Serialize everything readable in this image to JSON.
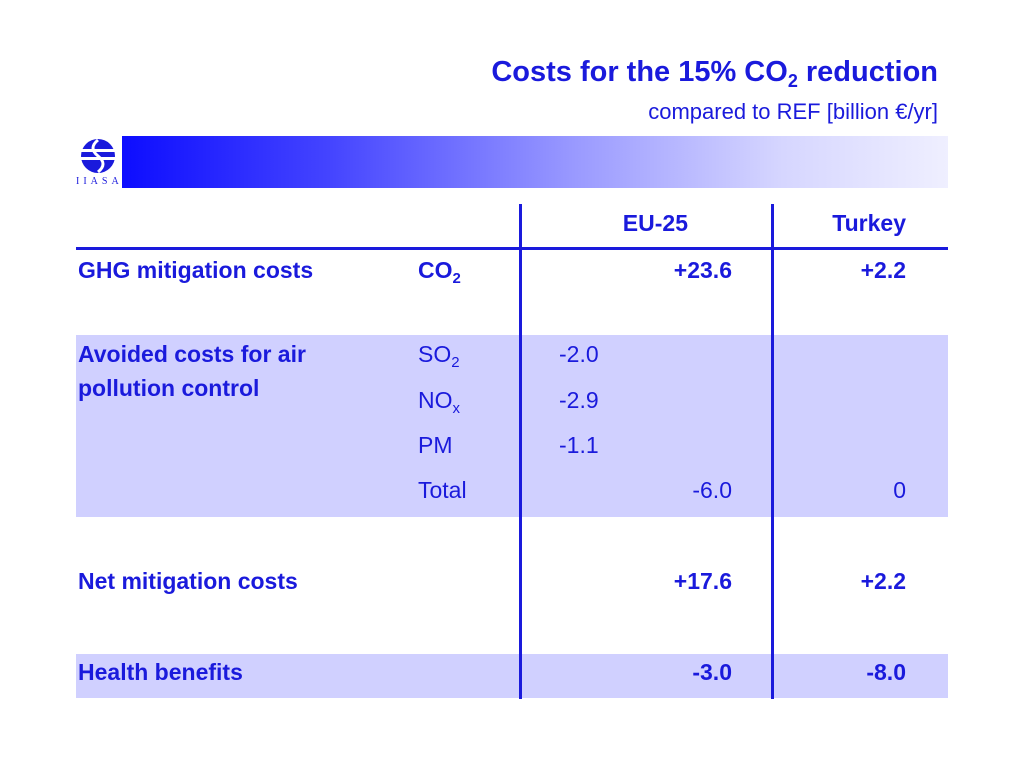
{
  "title": {
    "text": "Costs for the 15% CO",
    "sub": "2",
    "tail": " reduction"
  },
  "subtitle": "compared to REF [billion €/yr]",
  "logo": {
    "label": "IIASA"
  },
  "table": {
    "headers": {
      "eu": "EU-25",
      "turkey": "Turkey"
    },
    "ghg": {
      "label": "GHG mitigation costs",
      "gas": "CO",
      "gas_sub": "2",
      "eu": "+23.6",
      "turkey": "+2.2"
    },
    "avoided": {
      "label": "Avoided costs for air pollution control",
      "rows": [
        {
          "gas": "SO",
          "gas_sub": "2",
          "eu_detail": "-2.0"
        },
        {
          "gas": "NO",
          "gas_sub": "x",
          "eu_detail": "-2.9"
        },
        {
          "gas": "PM",
          "gas_sub": "",
          "eu_detail": "-1.1"
        }
      ],
      "total": {
        "label": "Total",
        "eu": "-6.0",
        "turkey": "0"
      }
    },
    "net": {
      "label": "Net mitigation costs",
      "eu": "+17.6",
      "turkey": "+2.2"
    },
    "health": {
      "label": "Health benefits",
      "eu": "-3.0",
      "turkey": "-8.0"
    }
  },
  "colors": {
    "text": "#1a1adc",
    "band": "#d0d0ff",
    "banner_start": "#0d0dff"
  }
}
